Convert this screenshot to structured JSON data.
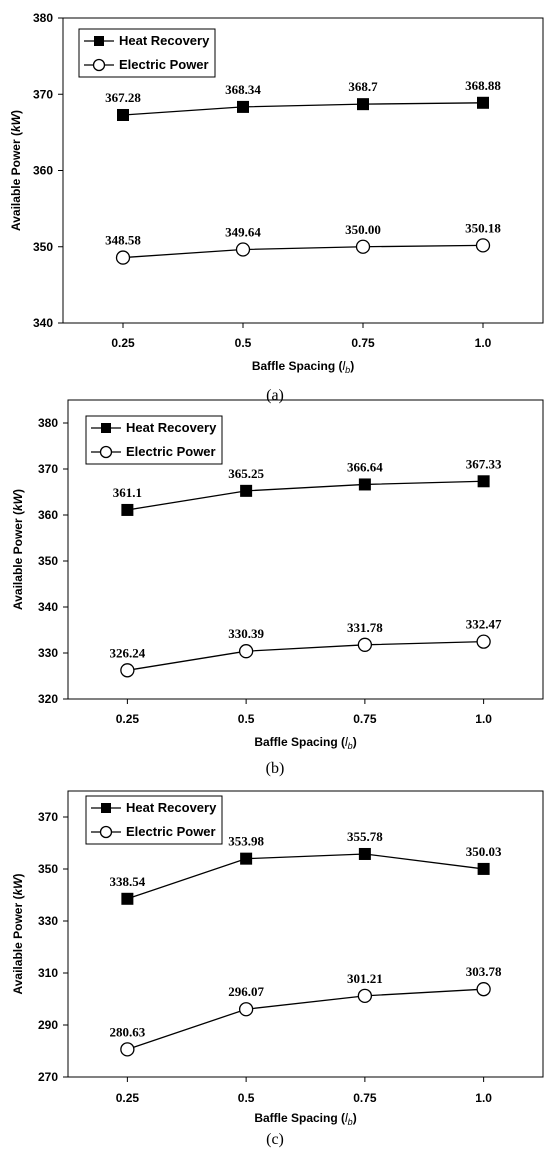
{
  "chart_data": [
    {
      "type": "line",
      "caption": "(a)",
      "categories": [
        "0.25",
        "0.5",
        "0.75",
        "1.0"
      ],
      "xlabel": "Baffle Spacing (",
      "xlabel_var": "l",
      "xlabel_sub": "b",
      "xlabel_end": ")",
      "ylabel": "Available Power (",
      "ylabel_var": "kW",
      "ylabel_end": ")",
      "ylim": [
        340,
        380
      ],
      "yticks": [
        "340",
        "350",
        "360",
        "370",
        "380"
      ],
      "legend_position": "top-left",
      "series": [
        {
          "name": "Heat Recovery",
          "marker": "filled-square",
          "values": [
            367.28,
            368.34,
            368.7,
            368.88
          ],
          "labels": [
            "367.28",
            "368.34",
            "368.7",
            "368.88"
          ]
        },
        {
          "name": "Electric Power",
          "marker": "open-circle",
          "values": [
            348.58,
            349.64,
            350.0,
            350.18
          ],
          "labels": [
            "348.58",
            "349.64",
            "350.00",
            "350.18"
          ]
        }
      ]
    },
    {
      "type": "line",
      "caption": "(b)",
      "categories": [
        "0.25",
        "0.5",
        "0.75",
        "1.0"
      ],
      "xlabel": "Baffle Spacing (",
      "xlabel_var": "l",
      "xlabel_sub": "b",
      "xlabel_end": ")",
      "ylabel": "Available Power (",
      "ylabel_var": "kW",
      "ylabel_end": ")",
      "ylim": [
        320,
        385
      ],
      "yticks": [
        "320",
        "330",
        "340",
        "350",
        "360",
        "370",
        "380"
      ],
      "legend_position": "top-left",
      "series": [
        {
          "name": "Heat Recovery",
          "marker": "filled-square",
          "values": [
            361.1,
            365.25,
            366.64,
            367.33
          ],
          "labels": [
            "361.1",
            "365.25",
            "366.64",
            "367.33"
          ]
        },
        {
          "name": "Electric Power",
          "marker": "open-circle",
          "values": [
            326.24,
            330.39,
            331.78,
            332.47
          ],
          "labels": [
            "326.24",
            "330.39",
            "331.78",
            "332.47"
          ]
        }
      ]
    },
    {
      "type": "line",
      "caption": "(c)",
      "categories": [
        "0.25",
        "0.5",
        "0.75",
        "1.0"
      ],
      "xlabel": "Baffle Spacing (",
      "xlabel_var": "l",
      "xlabel_sub": "b",
      "xlabel_end": ")",
      "ylabel": "Available Power (",
      "ylabel_var": "kW",
      "ylabel_end": ")",
      "ylim": [
        270,
        380
      ],
      "yticks": [
        "270",
        "290",
        "310",
        "330",
        "350",
        "370"
      ],
      "legend_position": "top-left",
      "series": [
        {
          "name": "Heat Recovery",
          "marker": "filled-square",
          "values": [
            338.54,
            353.98,
            355.78,
            350.03
          ],
          "labels": [
            "338.54",
            "353.98",
            "355.78",
            "350.03"
          ]
        },
        {
          "name": "Electric Power",
          "marker": "open-circle",
          "values": [
            280.63,
            296.07,
            301.21,
            303.78
          ],
          "labels": [
            "280.63",
            "296.07",
            "301.21",
            "303.78"
          ]
        }
      ]
    }
  ]
}
